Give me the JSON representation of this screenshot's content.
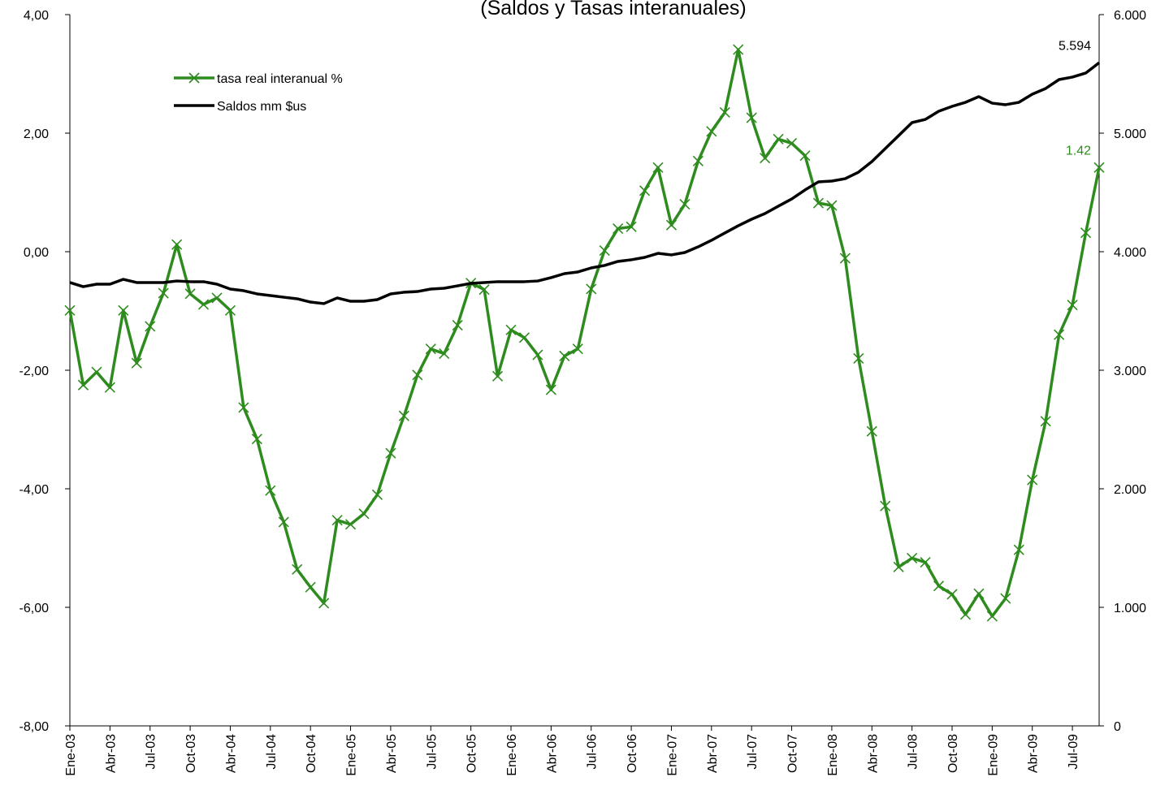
{
  "chart_data": {
    "type": "line",
    "title": "(Saldos y Tasas interanuales)",
    "categories": [
      "Ene-03",
      null,
      null,
      "Abr-03",
      null,
      null,
      "Jul-03",
      null,
      null,
      "Oct-03",
      null,
      null,
      "Abr-04",
      null,
      null,
      "Jul-04",
      null,
      null,
      "Oct-04",
      null,
      null,
      "Ene-05",
      null,
      null,
      "Abr-05",
      null,
      null,
      "Jul-05",
      null,
      null,
      "Oct-05",
      null,
      null,
      "Ene-06",
      null,
      null,
      "Abr-06",
      null,
      null,
      "Jul-06",
      null,
      null,
      "Oct-06",
      null,
      null,
      "Ene-07",
      null,
      null,
      "Abr-07",
      null,
      null,
      "Jul-07",
      null,
      null,
      "Oct-07",
      null,
      null,
      "Ene-08",
      null,
      null,
      "Abr-08",
      null,
      null,
      "Jul-08",
      null,
      null,
      "Oct-08",
      null,
      null,
      "Ene-09",
      null,
      null,
      "Abr-09",
      null,
      null,
      "Jul-09",
      null,
      null
    ],
    "series": [
      {
        "name": "tasa real interanual %",
        "color": "#2e8b1e",
        "marker": "x",
        "values": [
          -0.99,
          -2.25,
          -2.03,
          -2.29,
          -0.99,
          -1.88,
          -1.26,
          -0.7,
          0.12,
          -0.71,
          -0.89,
          -0.78,
          -0.99,
          -2.63,
          -3.16,
          -4.03,
          -4.56,
          -5.36,
          -5.66,
          -5.93,
          -4.53,
          -4.6,
          -4.42,
          -4.1,
          -3.4,
          -2.77,
          -2.08,
          -1.64,
          -1.72,
          -1.24,
          -0.53,
          -0.64,
          -2.1,
          -1.32,
          -1.45,
          -1.74,
          -2.33,
          -1.76,
          -1.64,
          -0.63,
          0.02,
          0.39,
          0.42,
          1.03,
          1.42,
          0.45,
          0.8,
          1.53,
          2.03,
          2.35,
          3.41,
          2.26,
          1.58,
          1.9,
          1.83,
          1.62,
          0.82,
          0.78,
          -0.11,
          -1.8,
          -3.03,
          -4.29,
          -5.32,
          -5.17,
          -5.24,
          -5.64,
          -5.78,
          -6.12,
          -5.77,
          -6.15,
          -5.85,
          -5.03,
          -3.85,
          -2.86,
          -1.4,
          -0.9,
          0.32,
          1.42
        ],
        "value_labels": [
          null,
          null,
          null,
          null,
          null,
          null,
          null,
          null,
          null,
          null,
          null,
          null,
          null,
          null,
          null,
          null,
          null,
          null,
          null,
          null,
          null,
          null,
          null,
          null,
          null,
          null,
          null,
          null,
          null,
          null,
          null,
          null,
          null,
          null,
          null,
          null,
          null,
          null,
          null,
          null,
          null,
          null,
          null,
          null,
          null,
          null,
          null,
          null,
          null,
          null,
          null,
          null,
          null,
          null,
          null,
          null,
          null,
          null,
          null,
          null,
          null,
          null,
          null,
          null,
          null,
          null,
          null,
          null,
          null,
          null,
          null,
          null,
          null,
          null,
          null,
          null,
          null,
          "1.42"
        ]
      },
      {
        "name": "Saldos mm $us",
        "color": "#000000",
        "axis": "y2",
        "values": [
          3740,
          3705,
          3726,
          3726,
          3767,
          3740,
          3740,
          3740,
          3753,
          3747,
          3747,
          3726,
          3685,
          3671,
          3644,
          3630,
          3616,
          3603,
          3575,
          3562,
          3610,
          3582,
          3582,
          3596,
          3644,
          3658,
          3664,
          3685,
          3692,
          3712,
          3733,
          3740,
          3747,
          3747,
          3747,
          3753,
          3781,
          3815,
          3829,
          3863,
          3884,
          3918,
          3932,
          3952,
          3986,
          3973,
          3993,
          4041,
          4096,
          4158,
          4219,
          4274,
          4322,
          4384,
          4445,
          4521,
          4589,
          4596,
          4616,
          4671,
          4760,
          4870,
          4979,
          5089,
          5116,
          5185,
          5226,
          5260,
          5308,
          5253,
          5240,
          5260,
          5329,
          5377,
          5452,
          5473,
          5507,
          5594
        ],
        "value_labels": [
          null,
          null,
          null,
          null,
          null,
          null,
          null,
          null,
          null,
          null,
          null,
          null,
          null,
          null,
          null,
          null,
          null,
          null,
          null,
          null,
          null,
          null,
          null,
          null,
          null,
          null,
          null,
          null,
          null,
          null,
          null,
          null,
          null,
          null,
          null,
          null,
          null,
          null,
          null,
          null,
          null,
          null,
          null,
          null,
          null,
          null,
          null,
          null,
          null,
          null,
          null,
          null,
          null,
          null,
          null,
          null,
          null,
          null,
          null,
          null,
          null,
          null,
          null,
          null,
          null,
          null,
          null,
          null,
          null,
          null,
          null,
          null,
          null,
          null,
          null,
          null,
          null,
          "5.594"
        ]
      }
    ],
    "ylim": [
      -8,
      4
    ],
    "yticks": [
      {
        "value": -8,
        "label": "-8,00"
      },
      {
        "value": -6,
        "label": "-6,00"
      },
      {
        "value": -4,
        "label": "-4,00"
      },
      {
        "value": -2,
        "label": "-2,00"
      },
      {
        "value": 0,
        "label": "0,00"
      },
      {
        "value": 2,
        "label": "2,00"
      },
      {
        "value": 4,
        "label": "4,00"
      }
    ],
    "y2lim": [
      0,
      6000
    ],
    "y2ticks": [
      0,
      {
        "value": 1000,
        "label": "1.000"
      },
      {
        "value": 2000,
        "label": "2.000"
      },
      {
        "value": 3000,
        "label": "3.000"
      },
      {
        "value": 4000,
        "label": "4.000"
      },
      {
        "value": 5000,
        "label": "5.000"
      },
      {
        "value": 6000,
        "label": "6.000"
      }
    ],
    "legend": "upper left",
    "grid": false
  }
}
